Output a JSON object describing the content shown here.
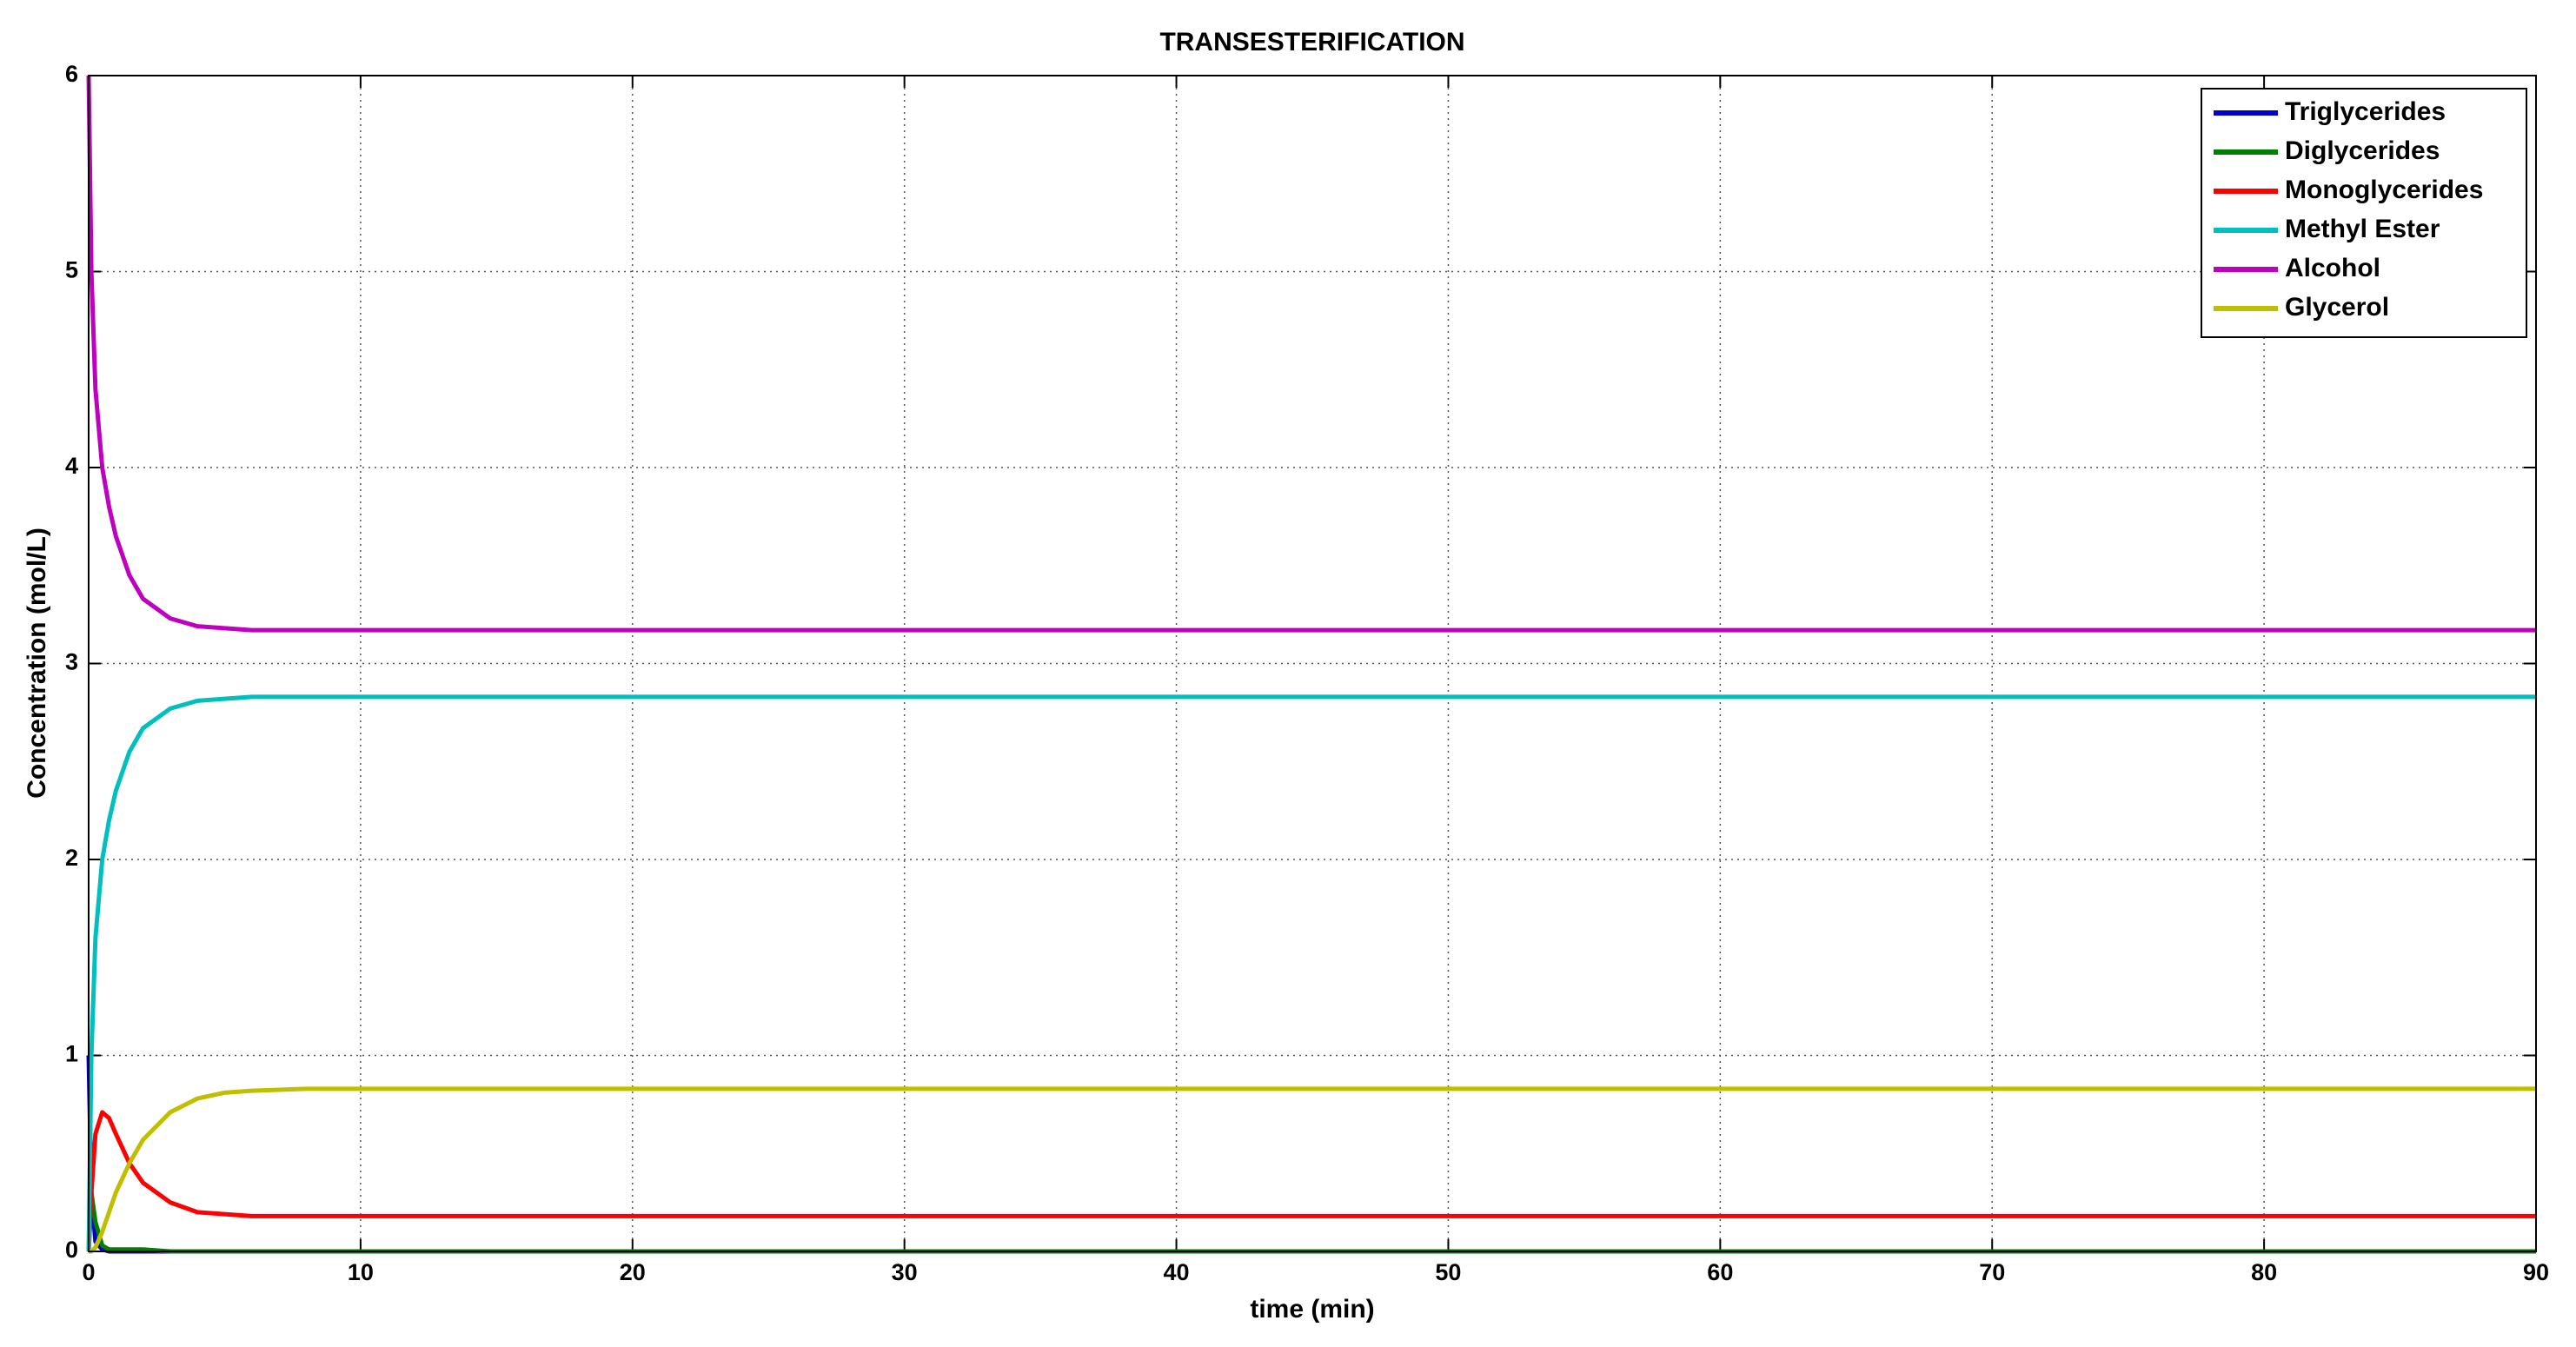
{
  "chart_data": {
    "type": "line",
    "title": "TRANSESTERIFICATION",
    "x_label": "time (min)",
    "y_label": "Concentration (mol/L)",
    "x": [
      0,
      0.1,
      0.25,
      0.5,
      0.75,
      1,
      1.5,
      2,
      3,
      4,
      5,
      6,
      8,
      10,
      20,
      30,
      40,
      50,
      60,
      70,
      80,
      90
    ],
    "series": [
      {
        "name": "Triglycerides",
        "color": "#0000cc",
        "values": [
          1,
          0.3,
          0.05,
          0.01,
          0,
          0,
          0,
          0,
          0,
          0,
          0,
          0,
          0,
          0,
          0,
          0,
          0,
          0,
          0,
          0,
          0,
          0
        ]
      },
      {
        "name": "Diglycerides",
        "color": "#007f00",
        "values": [
          0,
          0.3,
          0.15,
          0.03,
          0.01,
          0.01,
          0.01,
          0.01,
          0,
          0,
          0,
          0,
          0,
          0,
          0,
          0,
          0,
          0,
          0,
          0,
          0,
          0
        ]
      },
      {
        "name": "Monoglycerides",
        "color": "#ff0000",
        "values": [
          0,
          0.3,
          0.6,
          0.71,
          0.68,
          0.6,
          0.45,
          0.35,
          0.25,
          0.2,
          0.19,
          0.18,
          0.18,
          0.18,
          0.18,
          0.18,
          0.18,
          0.18,
          0.18,
          0.18,
          0.18,
          0.18
        ]
      },
      {
        "name": "Methyl Ester",
        "color": "#00bfbf",
        "values": [
          0,
          1.0,
          1.6,
          2.0,
          2.2,
          2.35,
          2.55,
          2.67,
          2.77,
          2.81,
          2.82,
          2.83,
          2.83,
          2.83,
          2.83,
          2.83,
          2.83,
          2.83,
          2.83,
          2.83,
          2.83,
          2.83
        ]
      },
      {
        "name": "Alcohol",
        "color": "#bf00bf",
        "values": [
          6,
          5.0,
          4.4,
          4.0,
          3.8,
          3.65,
          3.45,
          3.33,
          3.23,
          3.19,
          3.18,
          3.17,
          3.17,
          3.17,
          3.17,
          3.17,
          3.17,
          3.17,
          3.17,
          3.17,
          3.17,
          3.17
        ]
      },
      {
        "name": "Glycerol",
        "color": "#bfbf00",
        "values": [
          0,
          0,
          0.02,
          0.1,
          0.2,
          0.3,
          0.45,
          0.57,
          0.71,
          0.78,
          0.81,
          0.82,
          0.83,
          0.83,
          0.83,
          0.83,
          0.83,
          0.83,
          0.83,
          0.83,
          0.83,
          0.83
        ]
      }
    ],
    "xlim": [
      0,
      90
    ],
    "xticks": [
      0,
      10,
      20,
      30,
      40,
      50,
      60,
      70,
      80,
      90
    ],
    "ylim": [
      0,
      6
    ],
    "yticks": [
      0,
      1,
      2,
      3,
      4,
      5,
      6
    ],
    "grid": true,
    "legend": "top-right"
  }
}
